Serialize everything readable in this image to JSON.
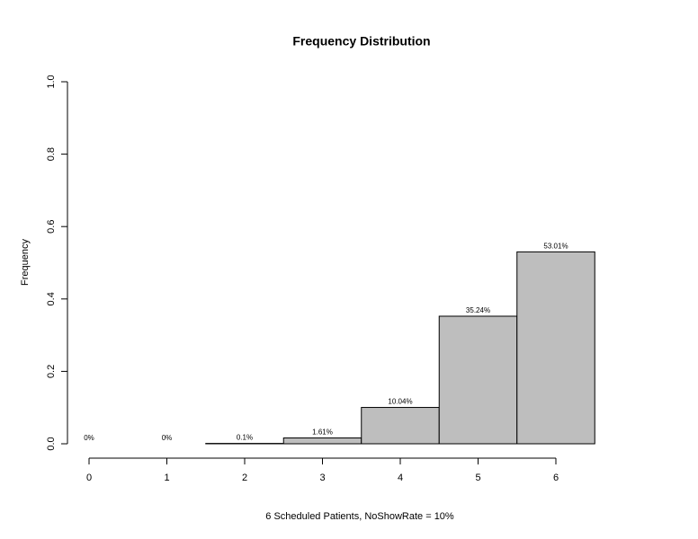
{
  "chart_data": {
    "type": "bar",
    "title": "Frequency Distribution",
    "x_label": "6 Scheduled Patients,  NoShowRate = 10%",
    "y_label": "Frequency",
    "x": [
      0,
      1,
      2,
      3,
      4,
      5,
      6
    ],
    "values": [
      0,
      0,
      0.001,
      0.0161,
      0.1004,
      0.3524,
      0.5301
    ],
    "value_labels": [
      "0%",
      "0%",
      "0.1%",
      "1.61%",
      "10.04%",
      "35.24%",
      "53.01%"
    ],
    "color": "#bebebe",
    "xlim": [
      0,
      6
    ],
    "xticks": [
      0,
      1,
      2,
      3,
      4,
      5,
      6
    ],
    "ylim": [
      0,
      1
    ],
    "yticks": [
      {
        "value": 0,
        "label": "0.0"
      },
      0.2,
      0.4,
      0.6,
      0.8,
      {
        "value": 1,
        "label": "1.0"
      }
    ],
    "grid": false
  }
}
